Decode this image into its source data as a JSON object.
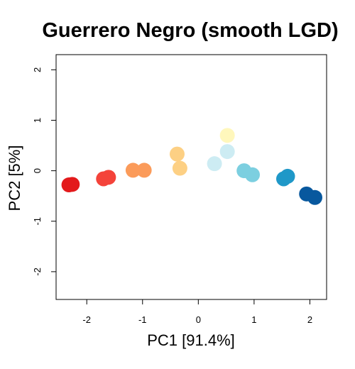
{
  "chart_data": {
    "type": "scatter",
    "title": "Guerrero Negro (smooth LGD)",
    "xlabel": "PC1 [91.4%]",
    "ylabel": "PC2 [5%]",
    "xlim": [
      -2.55,
      2.3
    ],
    "ylim": [
      -2.55,
      2.3
    ],
    "xticks": [
      -2,
      -1,
      0,
      1,
      2
    ],
    "yticks": [
      -2,
      -1,
      0,
      1,
      2
    ],
    "xtick_labels": [
      "-2",
      "-1",
      "0",
      "1",
      "2"
    ],
    "ytick_labels": [
      "-2",
      "-1",
      "0",
      "1",
      "2"
    ],
    "grid": false,
    "points": [
      {
        "x": -2.32,
        "y": -0.28,
        "color": "#e31a1c"
      },
      {
        "x": -2.26,
        "y": -0.27,
        "color": "#e31a1c"
      },
      {
        "x": -1.7,
        "y": -0.16,
        "color": "#f4433a"
      },
      {
        "x": -1.61,
        "y": -0.13,
        "color": "#f4433a"
      },
      {
        "x": -1.17,
        "y": 0.01,
        "color": "#fb9b5a"
      },
      {
        "x": -0.97,
        "y": 0.01,
        "color": "#fb9b5a"
      },
      {
        "x": -0.38,
        "y": 0.33,
        "color": "#fdd084"
      },
      {
        "x": -0.33,
        "y": 0.05,
        "color": "#fdd084"
      },
      {
        "x": 0.29,
        "y": 0.14,
        "color": "#cdecf3"
      },
      {
        "x": 0.52,
        "y": 0.7,
        "color": "#fff7bc"
      },
      {
        "x": 0.52,
        "y": 0.38,
        "color": "#cdecf3"
      },
      {
        "x": 0.82,
        "y": 0.0,
        "color": "#7ccfe0"
      },
      {
        "x": 0.97,
        "y": -0.08,
        "color": "#7ccfe0"
      },
      {
        "x": 1.53,
        "y": -0.16,
        "color": "#1f98c8"
      },
      {
        "x": 1.6,
        "y": -0.11,
        "color": "#1f98c8"
      },
      {
        "x": 1.94,
        "y": -0.46,
        "color": "#08589e"
      },
      {
        "x": 2.09,
        "y": -0.53,
        "color": "#08589e"
      }
    ]
  }
}
